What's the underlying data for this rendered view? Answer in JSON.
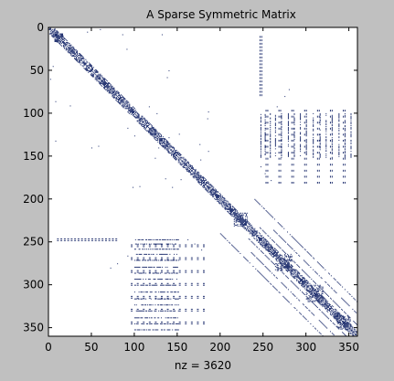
{
  "chart_data": {
    "type": "spy",
    "title": "A Sparse Symmetric Matrix",
    "xlabel": "nz = 3620",
    "ylabel": "",
    "n": 360,
    "xlim": [
      0,
      360
    ],
    "ylim": [
      0,
      360
    ],
    "y_reversed": true,
    "xticks": [
      0,
      50,
      100,
      150,
      200,
      250,
      300,
      350
    ],
    "yticks": [
      0,
      50,
      100,
      150,
      200,
      250,
      300,
      350
    ],
    "grid": false,
    "colors": {
      "figure_bg": "#c0c0c0",
      "axes_bg": "#ffffff",
      "marker": "#1f2f6e"
    },
    "patterns": {
      "diagonal_band": {
        "bandwidth": 6
      },
      "dense_blocks": [
        {
          "start": 7,
          "end": 18
        },
        {
          "start": 216,
          "end": 232
        },
        {
          "start": 264,
          "end": 284
        },
        {
          "start": 300,
          "end": 320
        },
        {
          "start": 336,
          "end": 352
        }
      ],
      "column_stripes": {
        "cols": [
          247,
          252,
          258,
          264,
          271,
          279,
          286,
          293,
          300,
          308,
          316,
          323,
          330,
          338,
          345,
          352
        ],
        "row_from": 100,
        "row_to": 152
      },
      "offdiagonals": [
        {
          "k": 13,
          "from": 246,
          "to": 360
        },
        {
          "k": 26,
          "from": 262,
          "to": 360
        },
        {
          "k": 40,
          "from": 240,
          "to": 360
        }
      ],
      "scattered_points": [
        [
          45,
          5
        ],
        [
          60,
          2
        ],
        [
          86,
          8
        ],
        [
          91,
          25
        ],
        [
          132,
          8
        ],
        [
          140,
          50
        ],
        [
          138,
          58
        ],
        [
          117,
          92
        ],
        [
          126,
          100
        ],
        [
          152,
          124
        ],
        [
          128,
          140
        ],
        [
          176,
          136
        ],
        [
          98,
          186
        ],
        [
          185,
          106
        ],
        [
          177,
          154
        ],
        [
          144,
          186
        ],
        [
          247,
          162
        ],
        [
          252,
          170
        ],
        [
          259,
          178
        ],
        [
          205,
          203
        ],
        [
          196,
          194
        ],
        [
          241,
          241
        ],
        [
          280,
          72
        ],
        [
          275,
          80
        ],
        [
          266,
          92
        ]
      ],
      "paired_rows": [
        {
          "rows": [
            246,
            248
          ],
          "col_from": 10,
          "col_to": 80,
          "step": 4
        },
        {
          "rows": [
            253,
            255
          ],
          "col_from": 96,
          "col_to": 180,
          "step": 7
        },
        {
          "rows": [
            268,
            270
          ],
          "col_from": 96,
          "col_to": 180,
          "step": 7
        },
        {
          "rows": [
            283,
            285
          ],
          "col_from": 96,
          "col_to": 180,
          "step": 7
        },
        {
          "rows": [
            298,
            300
          ],
          "col_from": 96,
          "col_to": 180,
          "step": 7
        },
        {
          "rows": [
            313,
            315
          ],
          "col_from": 96,
          "col_to": 180,
          "step": 7
        },
        {
          "rows": [
            328,
            330
          ],
          "col_from": 96,
          "col_to": 180,
          "step": 7
        },
        {
          "rows": [
            343,
            345
          ],
          "col_from": 96,
          "col_to": 180,
          "step": 7
        }
      ]
    }
  }
}
